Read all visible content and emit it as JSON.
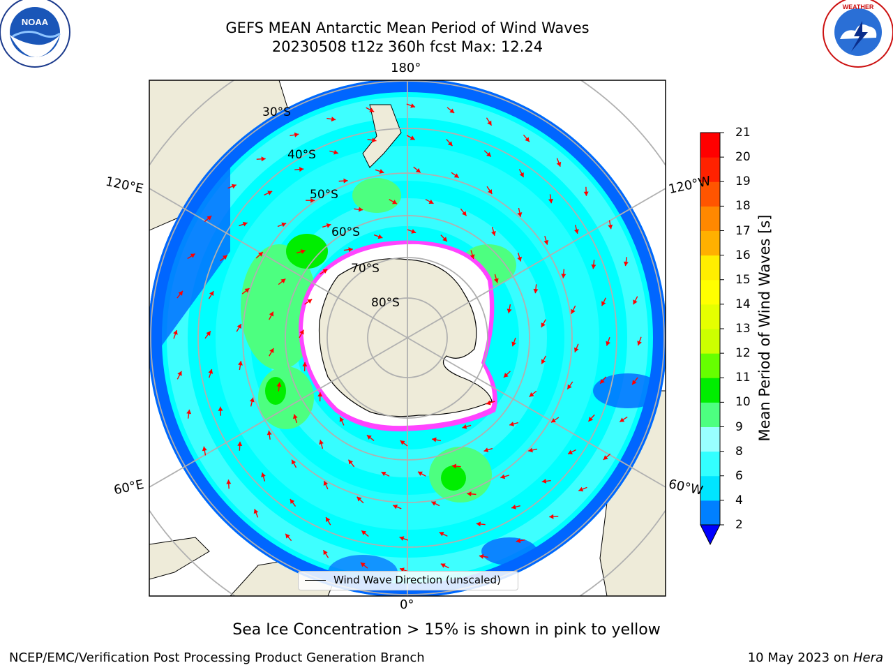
{
  "title_line1": "GEFS MEAN Antarctic Mean Period of Wind Waves",
  "title_line2": "20230508 t12z 360h fcst   Max: 12.24",
  "logos": {
    "left": {
      "name": "NOAA",
      "ring_text": "NATIONAL OCEANIC AND ATMOSPHERIC ADMINISTRATION · U.S. DEPARTMENT OF COMMERCE"
    },
    "right": {
      "name": "NATIONAL WEATHER SERVICE"
    }
  },
  "map": {
    "projection": "south-polar-stereographic",
    "lon_labels": {
      "top": "180°",
      "bottom": "0°",
      "upper_left": "120°E",
      "upper_right": "120°W",
      "lower_left": "60°E",
      "lower_right": "60°W"
    },
    "lat_labels": [
      "30°S",
      "40°S",
      "50°S",
      "60°S",
      "70°S",
      "80°S"
    ],
    "colors": {
      "ocean_low": "#0066ff",
      "ocean_mid": "#00ffff",
      "ocean_light": "#4dffff",
      "waves_long": "#00ff00",
      "land": "#eeebd9",
      "ice_shelf": "#ffffff",
      "sea_ice": "#ff44ff",
      "arrows": "#ff0000",
      "graticule": "#b0b0b0"
    },
    "legend_label": "Wind Wave Direction (unscaled)"
  },
  "colorbar": {
    "label": "Mean Period of Wind Waves [s]",
    "ticks": [
      "2",
      "4",
      "6",
      "8",
      "9",
      "10",
      "11",
      "12",
      "13",
      "14",
      "15",
      "16",
      "17",
      "18",
      "19",
      "20",
      "21"
    ],
    "colors": [
      "#0000ff",
      "#0080ff",
      "#00e5ff",
      "#33ffff",
      "#99ffff",
      "#4dff80",
      "#00ee00",
      "#66ff00",
      "#ccff00",
      "#e5ff00",
      "#ffff00",
      "#ffee00",
      "#ffb000",
      "#ff8800",
      "#ff5500",
      "#ff2200",
      "#ff0000"
    ]
  },
  "caption": "Sea Ice Concentration > 15% is shown in pink to yellow",
  "footer_left": "NCEP/EMC/Verification Post Processing Product Generation Branch",
  "footer_right_prefix": "10 May 2023 on ",
  "footer_right_host": "Hera"
}
